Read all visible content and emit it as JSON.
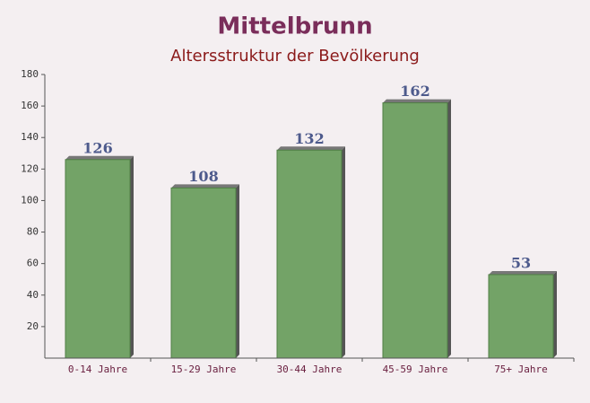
{
  "chart_data": {
    "type": "bar",
    "title": "Mittelbrunn",
    "subtitle": "Altersstruktur der Bevölkerung",
    "categories": [
      "0-14 Jahre",
      "15-29 Jahre",
      "30-44 Jahre",
      "45-59 Jahre",
      "75+ Jahre"
    ],
    "values": [
      126,
      108,
      132,
      162,
      53
    ],
    "color": "#6b9e5f",
    "ylim": [
      0,
      180
    ],
    "yticks": [
      20,
      40,
      60,
      80,
      100,
      120,
      140,
      160,
      180
    ],
    "grid": false
  }
}
